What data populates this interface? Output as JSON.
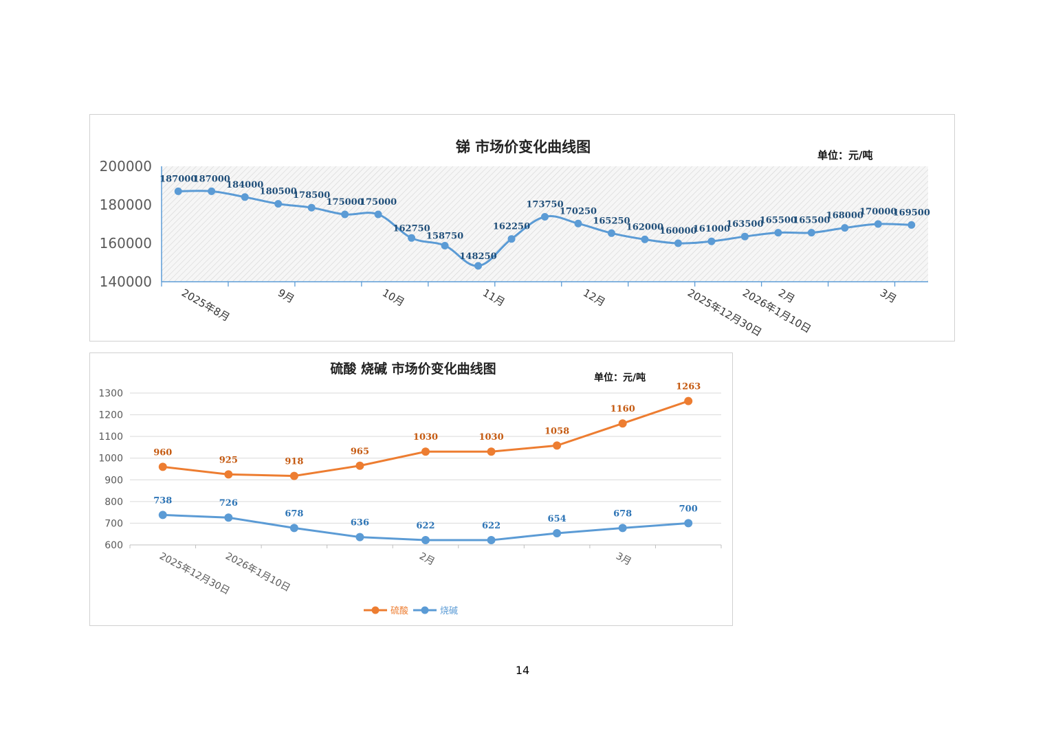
{
  "page": {
    "page_number": "14"
  },
  "chart_data": [
    {
      "type": "line",
      "title": "锑  市场价变化曲线图",
      "unit_label": "单位：元/吨",
      "ylim": [
        140000,
        200000
      ],
      "y_ticks": [
        "140000",
        "160000",
        "180000",
        "200000"
      ],
      "x_tick_labels": [
        "2025年8月",
        "9月",
        "10月",
        "11月",
        "12月",
        "2025年12月30日",
        "2026年1月10日",
        "2月",
        "3月"
      ],
      "grid": "hatched",
      "colors": {
        "line": "#5b9bd5",
        "data_label": "#1f4e79",
        "axis": "#5b9bd5"
      },
      "series": [
        {
          "values": [
            187000,
            187000,
            184000,
            180500,
            178500,
            175000,
            175000,
            162750,
            158750,
            148250,
            162250,
            173750,
            170250,
            165250,
            162000,
            160000,
            161000,
            163500,
            165500,
            165500,
            168000,
            170000,
            169500
          ],
          "labels": [
            "187000",
            "187000",
            "184000",
            "180500",
            "178500",
            "175000",
            "175000",
            "162750",
            "158750",
            "148250",
            "162250",
            "173750",
            "170250",
            "165250",
            "162000",
            "160000",
            "161000",
            "163500",
            "165500",
            "165500",
            "168000",
            "170000",
            "169500"
          ]
        }
      ]
    },
    {
      "type": "line",
      "title": "硫酸 烧碱  市场价变化曲线图",
      "unit_label": "单位：元/吨",
      "ylim": [
        600,
        1300
      ],
      "y_ticks": [
        "600",
        "700",
        "800",
        "900",
        "1000",
        "1100",
        "1200",
        "1300"
      ],
      "x_tick_labels": [
        "2025年12月30日",
        "2026年1月10日",
        "2月",
        "3月"
      ],
      "legend_position": "bottom",
      "grid": "horizontal",
      "series": [
        {
          "name": "硫酸",
          "color": "#ed7d31",
          "label_color": "#c55a11",
          "values": [
            960,
            925,
            918,
            965,
            1030,
            1030,
            1058,
            1160,
            1263
          ],
          "labels": [
            "960",
            "925",
            "918",
            "965",
            "1030",
            "1030",
            "1058",
            "1160",
            "1263"
          ]
        },
        {
          "name": "烧碱",
          "color": "#5b9bd5",
          "label_color": "#2e75b6",
          "values": [
            738,
            726,
            678,
            636,
            622,
            622,
            654,
            678,
            700
          ],
          "labels": [
            "738",
            "726",
            "678",
            "636",
            "622",
            "622",
            "654",
            "678",
            "700"
          ]
        }
      ]
    }
  ]
}
